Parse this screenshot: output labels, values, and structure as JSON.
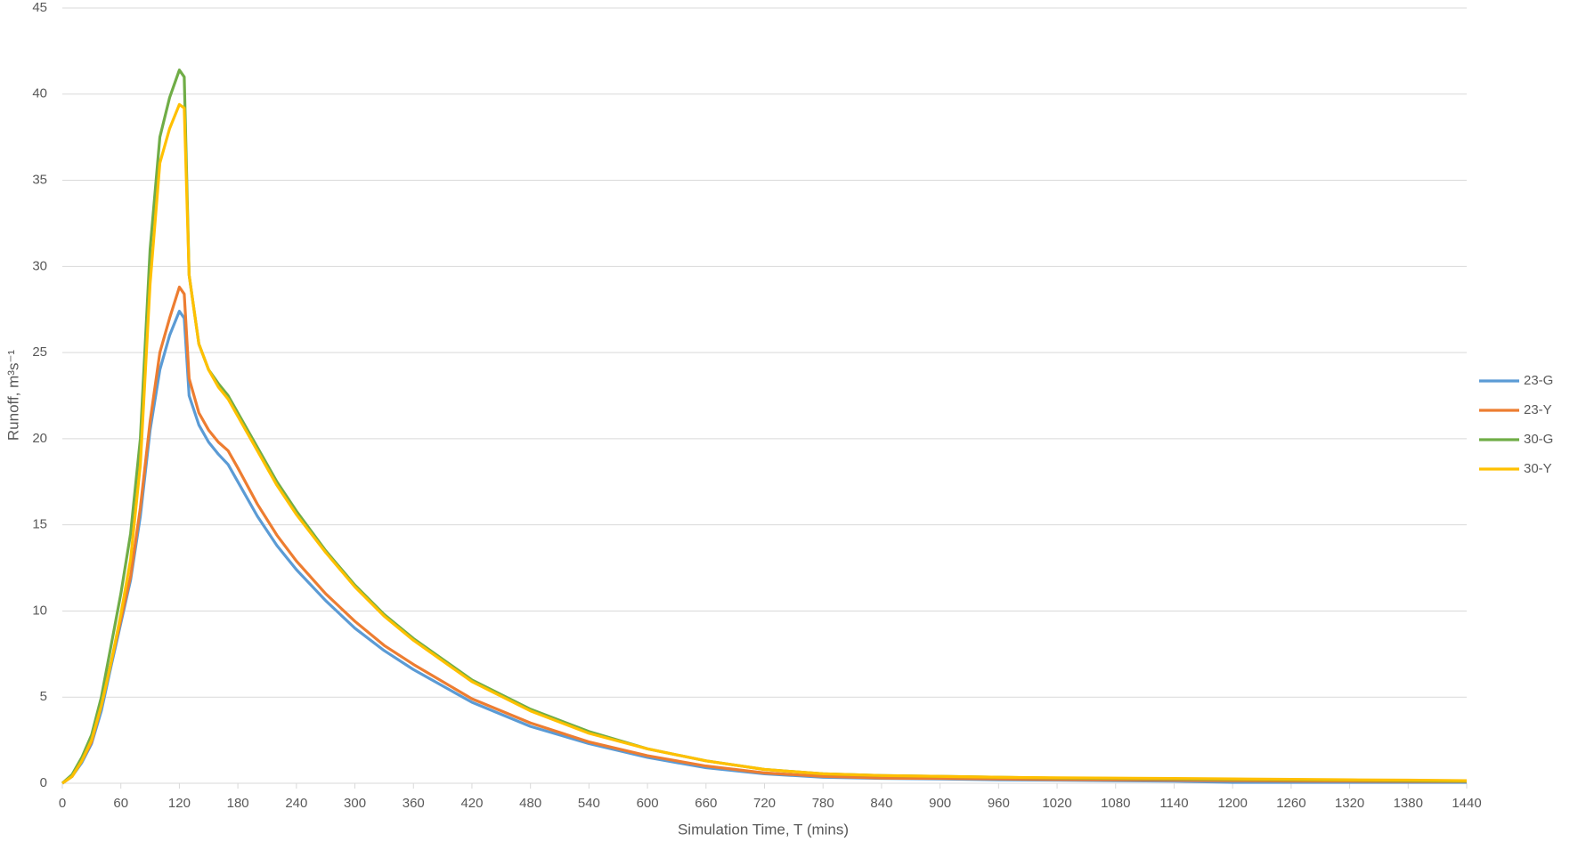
{
  "chart_data": {
    "type": "line",
    "x_label": "Simulation Time, T (mins)",
    "y_label": "Runoff, m³s⁻¹",
    "x": [
      0,
      10,
      20,
      30,
      40,
      50,
      60,
      70,
      80,
      90,
      100,
      110,
      120,
      125,
      130,
      140,
      150,
      160,
      170,
      180,
      200,
      220,
      240,
      270,
      300,
      330,
      360,
      420,
      480,
      540,
      600,
      660,
      720,
      780,
      840,
      900,
      960,
      1020,
      1080,
      1140,
      1200,
      1260,
      1320,
      1380,
      1440
    ],
    "series": [
      {
        "name": "23-G",
        "color": "#5b9bd5",
        "values": [
          0,
          0.4,
          1.2,
          2.3,
          4.2,
          6.8,
          9.3,
          11.8,
          15.5,
          20.5,
          24,
          26,
          27.4,
          27,
          22.5,
          20.8,
          19.8,
          19.1,
          18.5,
          17.5,
          15.5,
          13.8,
          12.4,
          10.6,
          9,
          7.7,
          6.6,
          4.7,
          3.3,
          2.3,
          1.5,
          0.9,
          0.55,
          0.35,
          0.28,
          0.25,
          0.2,
          0.18,
          0.15,
          0.12,
          0.05,
          0.05,
          0.05,
          0.05,
          0.05
        ]
      },
      {
        "name": "23-Y",
        "color": "#ed7d31",
        "values": [
          0,
          0.4,
          1.3,
          2.4,
          4.5,
          7,
          9.5,
          12,
          16,
          21,
          25,
          27,
          28.8,
          28.4,
          23.5,
          21.5,
          20.5,
          19.8,
          19.3,
          18.3,
          16.2,
          14.4,
          12.9,
          11,
          9.4,
          8,
          6.9,
          4.9,
          3.5,
          2.4,
          1.6,
          1,
          0.6,
          0.4,
          0.3,
          0.28,
          0.25,
          0.22,
          0.2,
          0.18,
          0.15,
          0.13,
          0.12,
          0.1,
          0.1
        ]
      },
      {
        "name": "30-G",
        "color": "#70ad47",
        "values": [
          0,
          0.5,
          1.5,
          2.8,
          5,
          8,
          11,
          14.5,
          20,
          31,
          37.5,
          39.8,
          41.4,
          41,
          29.5,
          25.5,
          24,
          23.2,
          22.5,
          21.5,
          19.5,
          17.5,
          15.8,
          13.5,
          11.5,
          9.8,
          8.4,
          6,
          4.3,
          3,
          2,
          1.3,
          0.8,
          0.55,
          0.45,
          0.4,
          0.35,
          0.3,
          0.28,
          0.25,
          0.22,
          0.2,
          0.18,
          0.15,
          0.12
        ]
      },
      {
        "name": "30-Y",
        "color": "#ffc000",
        "values": [
          0,
          0.4,
          1.3,
          2.5,
          4.5,
          7,
          9.8,
          13,
          18.5,
          29,
          36,
          38,
          39.4,
          39.2,
          29.5,
          25.5,
          24,
          23,
          22.3,
          21.3,
          19.3,
          17.3,
          15.6,
          13.4,
          11.4,
          9.7,
          8.3,
          5.9,
          4.2,
          2.9,
          2,
          1.3,
          0.8,
          0.55,
          0.45,
          0.4,
          0.35,
          0.32,
          0.3,
          0.28,
          0.25,
          0.23,
          0.2,
          0.18,
          0.15
        ]
      }
    ],
    "xlim": [
      0,
      1440
    ],
    "xticks": [
      0,
      60,
      120,
      180,
      240,
      300,
      360,
      420,
      480,
      540,
      600,
      660,
      720,
      780,
      840,
      900,
      960,
      1020,
      1080,
      1140,
      1200,
      1260,
      1320,
      1380,
      1440
    ],
    "ylim": [
      0,
      45
    ],
    "yticks": [
      0,
      5,
      10,
      15,
      20,
      25,
      30,
      35,
      40,
      45
    ],
    "grid": true,
    "legend": "right"
  }
}
